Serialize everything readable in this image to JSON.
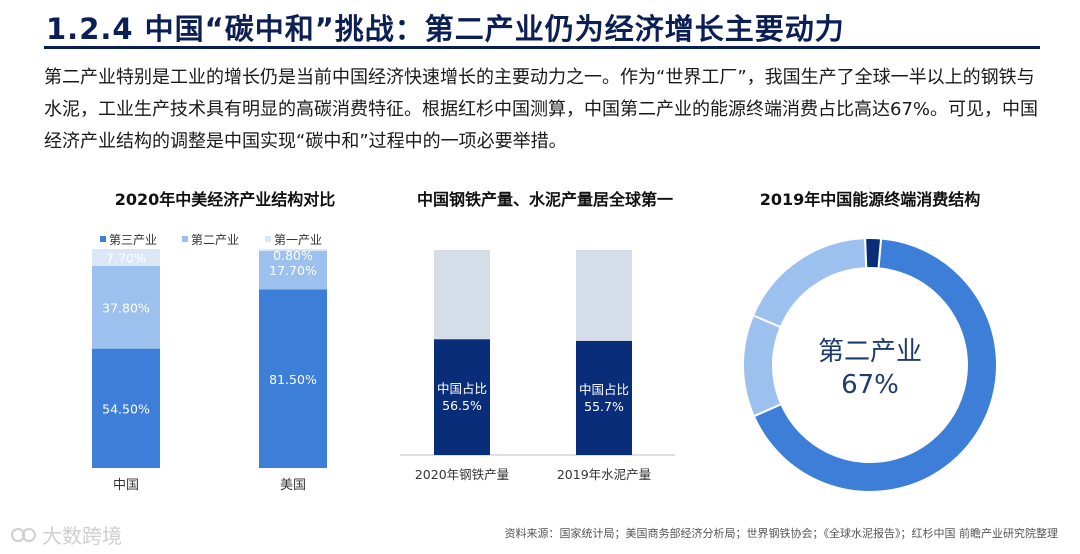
{
  "header": {
    "title": "1.2.4 中国“碳中和”挑战：第二产业仍为经济增长主要动力"
  },
  "intro": "第二产业特别是工业的增长仍是当前中国经济快速增长的主要动力之一。作为“世界工厂”，我国生产了全球一半以上的钢铁与水泥，工业生产技术具有明显的高碳消费特征。根据红杉中国测算，中国第二产业的能源终端消费占比高达67%。可见，中国经济产业结构的调整是中国实现“碳中和”过程中的一项必要举措。",
  "footer": {
    "source": "资料来源：国家统计局；美国商务部经济分析局；世界钢铁协会；《全球水泥报告》；红杉中国 前瞻产业研究院整理",
    "watermark": "大数跨境"
  },
  "colors": {
    "title": "#0b1f54",
    "tertiary": "#3d7fd8",
    "secondary": "#9dc1ee",
    "primary": "#dbe7f7",
    "china_share": "#0a2d7a",
    "rest_share": "#d5dde8",
    "donut_main": "#3d7fd8",
    "donut_light": "#9dc1ee",
    "donut_dark": "#0a2d7a"
  },
  "chart_data": [
    {
      "type": "bar",
      "stacked": true,
      "title": "2020年中美经济产业结构对比",
      "categories": [
        "中国",
        "美国"
      ],
      "series": [
        {
          "name": "第三产业",
          "values": [
            54.5,
            81.5
          ],
          "labels": [
            "54.50%",
            "81.50%"
          ]
        },
        {
          "name": "第二产业",
          "values": [
            37.8,
            17.7
          ],
          "labels": [
            "37.80%",
            "17.70%"
          ]
        },
        {
          "name": "第一产业",
          "values": [
            7.7,
            0.8
          ],
          "labels": [
            "7.70%",
            "0.80%"
          ]
        }
      ],
      "ylim": [
        0,
        100
      ],
      "legend": "top",
      "grid": false
    },
    {
      "type": "bar",
      "stacked": true,
      "title": "中国钢铁产量、水泥产量居全球第一",
      "categories": [
        "2020年钢铁产量",
        "2019年水泥产量"
      ],
      "series": [
        {
          "values": [
            56.5,
            55.7
          ],
          "labels": [
            "中国占比\n56.5%",
            "中国占比\n55.7%"
          ]
        },
        {
          "values": [
            43.5,
            44.3
          ]
        }
      ],
      "ylim": [
        0,
        100
      ],
      "grid": false
    },
    {
      "type": "pie",
      "donut": true,
      "title": "2019年中国能源终端消费结构",
      "center_label": [
        "第二产业",
        "67%"
      ],
      "slices": [
        {
          "value": 67
        },
        {
          "value": 13
        },
        {
          "value": 18
        },
        {
          "value": 2
        }
      ]
    }
  ]
}
